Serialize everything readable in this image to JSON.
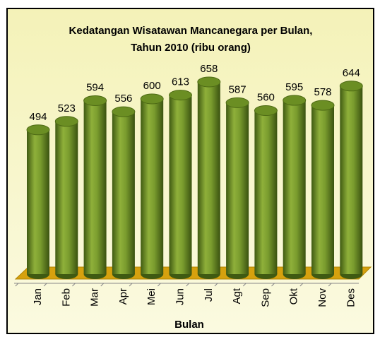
{
  "chart_data": {
    "type": "bar",
    "title": "Kedatangan Wisatawan Mancanegara per Bulan, Tahun 2010 (ribu orang)",
    "x_label": "Bulan",
    "categories": [
      "Jan",
      "Feb",
      "Mar",
      "Apr",
      "Mei",
      "Jun",
      "Jul",
      "Agt",
      "Sep",
      "Okt",
      "Nov",
      "Des"
    ],
    "values": [
      494,
      523,
      594,
      556,
      600,
      613,
      658,
      587,
      560,
      595,
      578,
      644
    ],
    "color": "#6b8e23"
  }
}
